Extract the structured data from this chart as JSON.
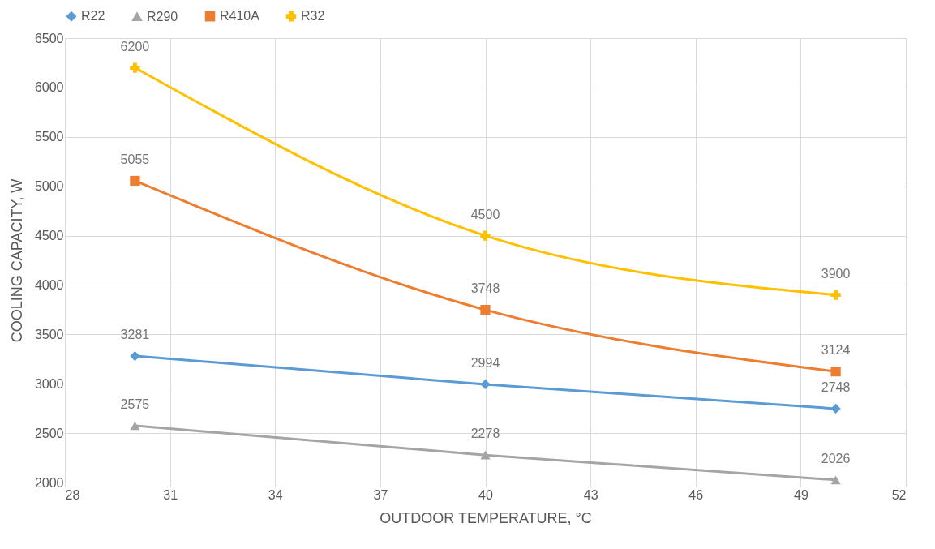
{
  "chart_data": {
    "type": "line",
    "xlabel": "OUTDOOR TEMPERATURE, °C",
    "ylabel": "COOLING CAPACITY, W",
    "x": [
      30,
      40,
      50
    ],
    "series": [
      {
        "name": "R22",
        "color": "#5b9bd5",
        "marker": "diamond",
        "values": [
          3281,
          2994,
          2748
        ]
      },
      {
        "name": "R290",
        "color": "#a5a5a5",
        "marker": "triangle",
        "values": [
          2575,
          2278,
          2026
        ]
      },
      {
        "name": "R410A",
        "color": "#ed7d31",
        "marker": "square",
        "values": [
          5055,
          3748,
          3124
        ]
      },
      {
        "name": "R32",
        "color": "#ffc000",
        "marker": "cross",
        "values": [
          6200,
          4500,
          3900
        ]
      }
    ],
    "xlim": [
      28,
      52
    ],
    "xticks": [
      28,
      31,
      34,
      37,
      40,
      43,
      46,
      49,
      52
    ],
    "ylim": [
      2000,
      6500
    ],
    "yticks": [
      2000,
      2500,
      3000,
      3500,
      4000,
      4500,
      5000,
      5500,
      6000,
      6500
    ],
    "grid": true,
    "legend": "top",
    "data_labels": true,
    "line_style": "solid"
  }
}
